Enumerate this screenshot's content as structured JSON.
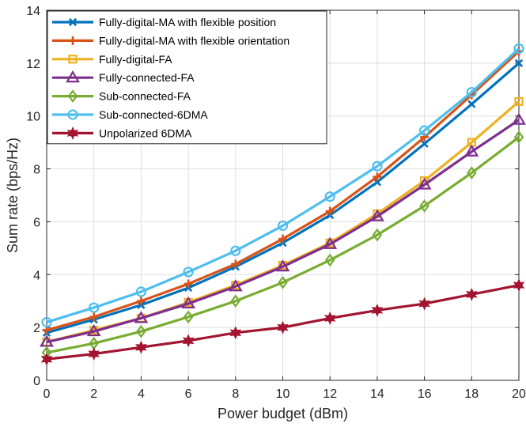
{
  "chart_data": {
    "type": "line",
    "title": "",
    "xlabel": "Power budget (dBm)",
    "ylabel": "Sum rate (bps/Hz)",
    "xlim": [
      0,
      20
    ],
    "ylim": [
      0,
      14
    ],
    "xticks": [
      0,
      2,
      4,
      6,
      8,
      10,
      12,
      14,
      16,
      18,
      20
    ],
    "yticks": [
      0,
      2,
      4,
      6,
      8,
      10,
      12,
      14
    ],
    "grid": true,
    "legend_position": "top-left",
    "x": [
      0,
      2,
      4,
      6,
      8,
      10,
      12,
      14,
      16,
      18,
      20
    ],
    "series": [
      {
        "name": "Fully-digital-MA with flexible position",
        "color": "#0072BD",
        "marker": "x-cross",
        "values": [
          1.8,
          2.3,
          2.85,
          3.5,
          4.3,
          5.2,
          6.25,
          7.5,
          8.95,
          10.45,
          12.0
        ]
      },
      {
        "name": "Fully-digital-MA with flexible orientation",
        "color": "#D95319",
        "marker": "plus",
        "values": [
          1.9,
          2.4,
          3.0,
          3.65,
          4.4,
          5.35,
          6.4,
          7.7,
          9.2,
          10.8,
          12.45
        ]
      },
      {
        "name": "Fully-digital-FA",
        "color": "#EDB120",
        "marker": "square",
        "values": [
          1.45,
          1.9,
          2.35,
          2.95,
          3.6,
          4.35,
          5.2,
          6.3,
          7.55,
          9.0,
          10.55
        ]
      },
      {
        "name": "Fully-connected-FA",
        "color": "#7E2F8E",
        "marker": "triangle",
        "values": [
          1.45,
          1.85,
          2.35,
          2.9,
          3.55,
          4.3,
          5.15,
          6.2,
          7.4,
          8.65,
          9.85
        ]
      },
      {
        "name": "Sub-connected-FA",
        "color": "#77AC30",
        "marker": "diamond",
        "values": [
          1.05,
          1.4,
          1.85,
          2.4,
          3.0,
          3.7,
          4.55,
          5.5,
          6.6,
          7.85,
          9.2
        ]
      },
      {
        "name": "Sub-connected-6DMA",
        "color": "#4DBEEE",
        "marker": "circle",
        "values": [
          2.2,
          2.75,
          3.35,
          4.1,
          4.9,
          5.85,
          6.95,
          8.1,
          9.45,
          10.9,
          12.55
        ]
      },
      {
        "name": "Unpolarized 6DMA",
        "color": "#A2142F",
        "marker": "hexagram",
        "values": [
          0.8,
          1.0,
          1.25,
          1.5,
          1.8,
          2.0,
          2.35,
          2.65,
          2.9,
          3.25,
          3.6
        ]
      }
    ]
  }
}
